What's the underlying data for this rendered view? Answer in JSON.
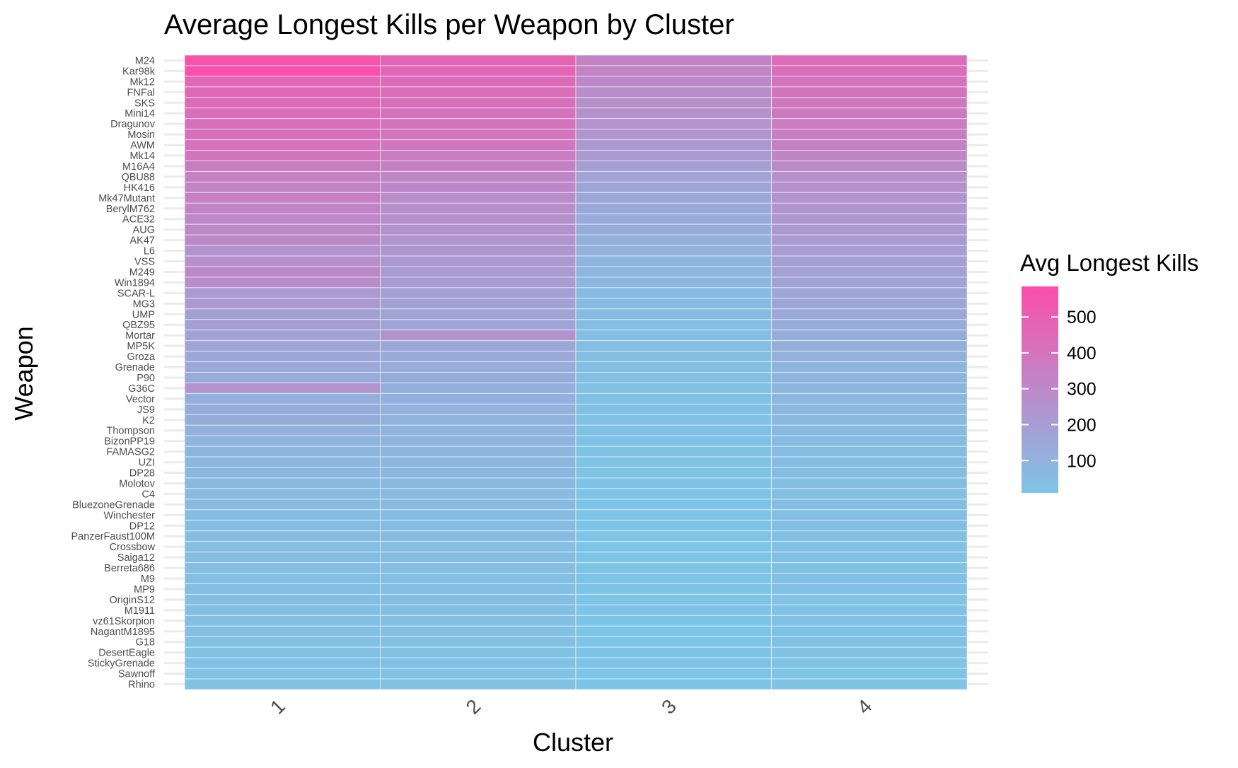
{
  "chart_data": {
    "type": "heatmap",
    "title": "Average Longest Kills per Weapon by Cluster",
    "xlabel": "Cluster",
    "ylabel": "Weapon",
    "legend": {
      "title": "Avg Longest Kills",
      "position": "right",
      "ticks": [
        100,
        200,
        300,
        400,
        500
      ],
      "tick_labels": [
        "100",
        "200",
        "300",
        "400",
        "500"
      ],
      "range": [
        10,
        585
      ],
      "color_low": "#7ec4e6",
      "color_high": "#fb4ea9"
    },
    "grid": true,
    "x": [
      "1",
      "2",
      "3",
      "4"
    ],
    "y": [
      "M24",
      "Kar98k",
      "Mk12",
      "FNFal",
      "SKS",
      "Mini14",
      "Dragunov",
      "Mosin",
      "AWM",
      "Mk14",
      "M16A4",
      "QBU88",
      "HK416",
      "Mk47Mutant",
      "BerylM762",
      "ACE32",
      "AUG",
      "AK47",
      "L6",
      "VSS",
      "M249",
      "Win1894",
      "SCAR-L",
      "MG3",
      "UMP",
      "QBZ95",
      "Mortar",
      "MP5K",
      "Groza",
      "Grenade",
      "P90",
      "G36C",
      "Vector",
      "JS9",
      "K2",
      "Thompson",
      "BizonPP19",
      "FAMASG2",
      "UZI",
      "DP28",
      "Molotov",
      "C4",
      "BluezoneGrenade",
      "Winchester",
      "DP12",
      "PanzerFaust100M",
      "Crossbow",
      "Saiga12",
      "Berreta686",
      "M9",
      "MP9",
      "OriginS12",
      "M1911",
      "vz61Skorpion",
      "NagantM1895",
      "G18",
      "DesertEagle",
      "StickyGrenade",
      "Sawnoff",
      "Rhino"
    ],
    "values": [
      [
        560,
        480,
        330,
        440
      ],
      [
        580,
        470,
        320,
        430
      ],
      [
        460,
        440,
        300,
        400
      ],
      [
        450,
        430,
        280,
        390
      ],
      [
        440,
        420,
        270,
        380
      ],
      [
        430,
        410,
        260,
        370
      ],
      [
        425,
        400,
        250,
        360
      ],
      [
        420,
        390,
        240,
        350
      ],
      [
        400,
        380,
        220,
        330
      ],
      [
        390,
        360,
        210,
        310
      ],
      [
        360,
        340,
        190,
        290
      ],
      [
        330,
        310,
        170,
        270
      ],
      [
        320,
        300,
        160,
        260
      ],
      [
        340,
        280,
        150,
        250
      ],
      [
        320,
        270,
        140,
        240
      ],
      [
        300,
        260,
        130,
        230
      ],
      [
        300,
        250,
        120,
        220
      ],
      [
        290,
        240,
        110,
        210
      ],
      [
        250,
        230,
        100,
        200
      ],
      [
        270,
        220,
        90,
        190
      ],
      [
        300,
        210,
        80,
        180
      ],
      [
        280,
        200,
        70,
        170
      ],
      [
        210,
        190,
        60,
        160
      ],
      [
        220,
        180,
        55,
        150
      ],
      [
        180,
        170,
        50,
        140
      ],
      [
        190,
        160,
        45,
        130
      ],
      [
        170,
        250,
        40,
        120
      ],
      [
        160,
        150,
        38,
        110
      ],
      [
        150,
        140,
        35,
        100
      ],
      [
        140,
        130,
        33,
        90
      ],
      [
        130,
        120,
        30,
        85
      ],
      [
        250,
        110,
        28,
        80
      ],
      [
        110,
        105,
        26,
        75
      ],
      [
        125,
        100,
        24,
        70
      ],
      [
        120,
        95,
        22,
        65
      ],
      [
        100,
        90,
        20,
        60
      ],
      [
        90,
        85,
        18,
        55
      ],
      [
        80,
        80,
        17,
        50
      ],
      [
        75,
        75,
        16,
        45
      ],
      [
        70,
        70,
        15,
        42
      ],
      [
        65,
        65,
        14,
        40
      ],
      [
        60,
        60,
        13,
        38
      ],
      [
        55,
        55,
        12,
        36
      ],
      [
        52,
        52,
        12,
        34
      ],
      [
        50,
        50,
        11,
        32
      ],
      [
        48,
        48,
        11,
        30
      ],
      [
        46,
        46,
        11,
        28
      ],
      [
        44,
        44,
        10,
        26
      ],
      [
        42,
        42,
        10,
        25
      ],
      [
        40,
        40,
        10,
        24
      ],
      [
        38,
        38,
        10,
        23
      ],
      [
        36,
        36,
        10,
        22
      ],
      [
        34,
        34,
        10,
        21
      ],
      [
        32,
        32,
        10,
        20
      ],
      [
        30,
        30,
        10,
        19
      ],
      [
        28,
        28,
        10,
        18
      ],
      [
        26,
        26,
        10,
        17
      ],
      [
        24,
        24,
        10,
        16
      ],
      [
        22,
        22,
        10,
        15
      ],
      [
        20,
        20,
        10,
        14
      ]
    ]
  }
}
